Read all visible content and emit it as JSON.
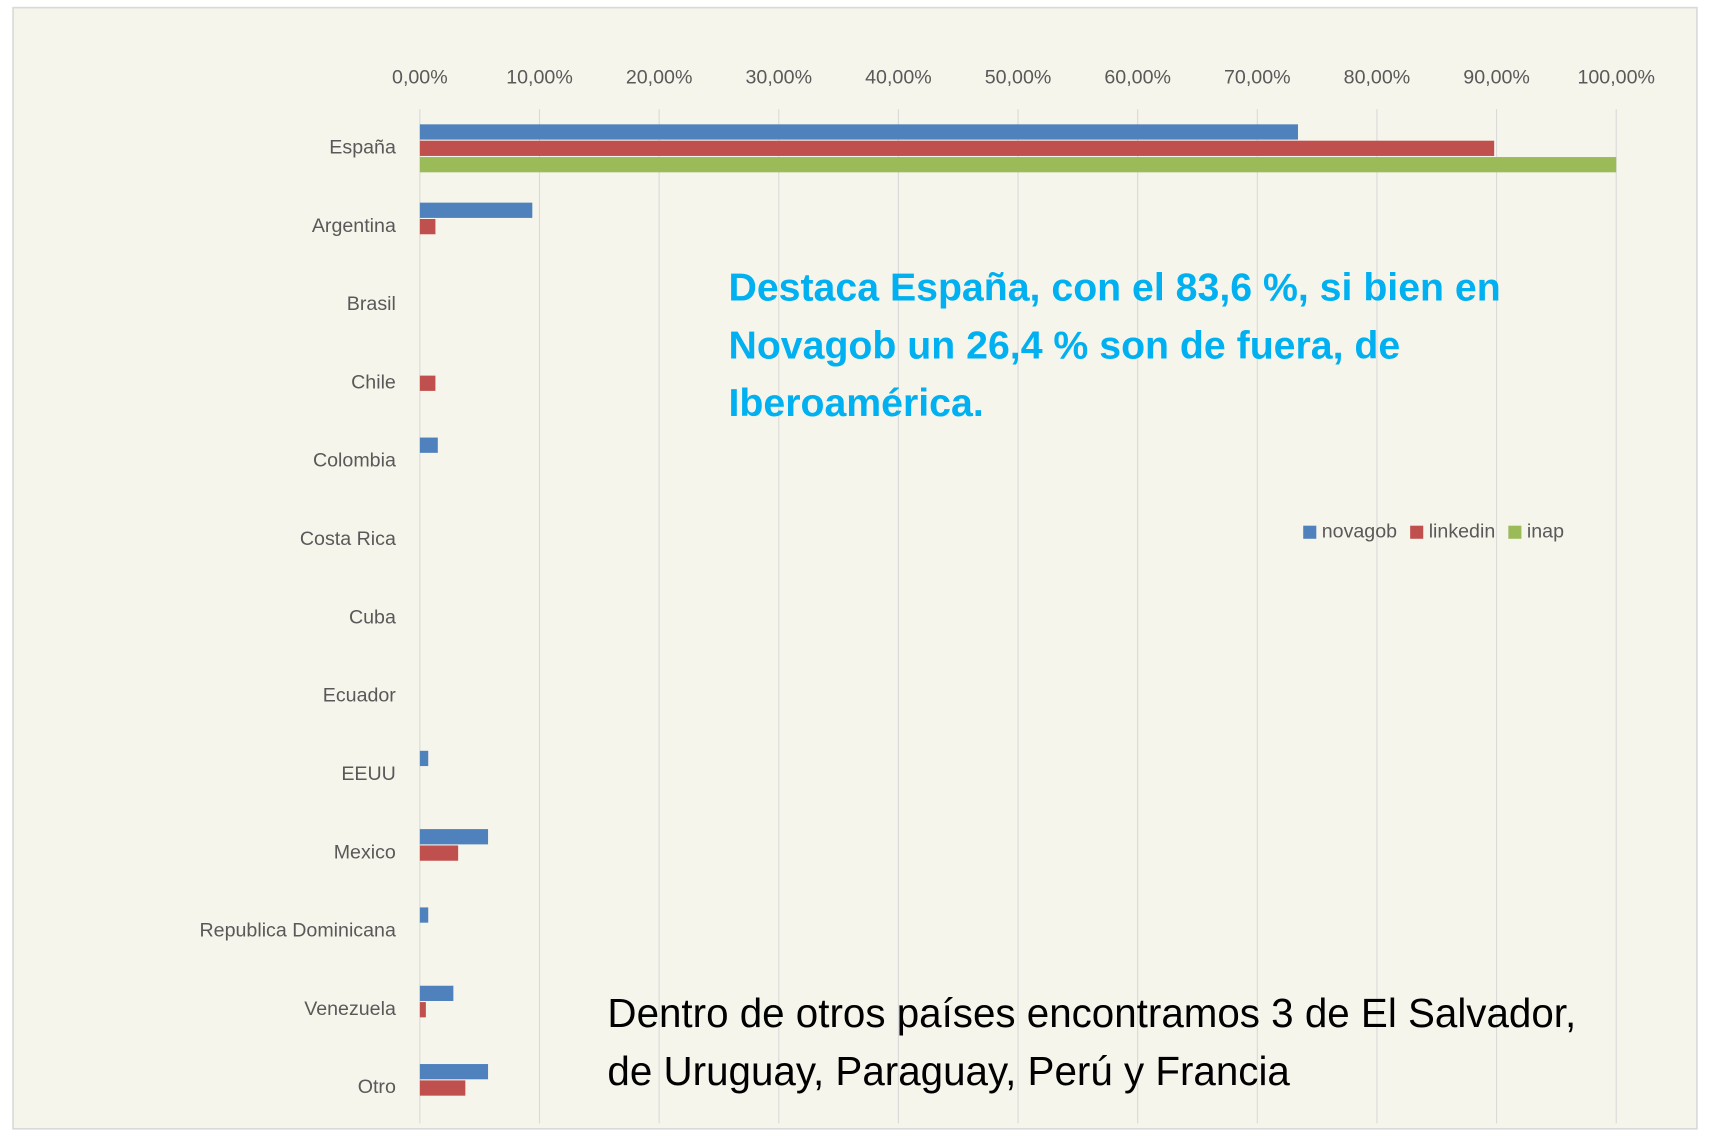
{
  "chart_data": {
    "type": "barh",
    "categories": [
      "España",
      "Argentina",
      "Brasil",
      "Chile",
      "Colombia",
      "Costa Rica",
      "Cuba",
      "Ecuador",
      "EEUU",
      "Mexico",
      "Republica Dominicana",
      "Venezuela",
      "Otro"
    ],
    "series": [
      {
        "name": "novagob",
        "color": "#4f81bd",
        "values": [
          73.4,
          9.4,
          0,
          0,
          1.5,
          0,
          0,
          0,
          0.7,
          5.7,
          0.7,
          2.8,
          5.7
        ]
      },
      {
        "name": "linkedin",
        "color": "#c0504d",
        "values": [
          89.8,
          1.3,
          0,
          1.3,
          0,
          0,
          0,
          0,
          0,
          3.2,
          0,
          0.5,
          3.8
        ]
      },
      {
        "name": "inap",
        "color": "#9bbb59",
        "values": [
          100,
          0,
          0,
          0,
          0,
          0,
          0,
          0,
          0,
          0,
          0,
          0,
          0
        ]
      }
    ],
    "xlim": [
      0,
      100
    ],
    "xticks": [
      {
        "value": 0,
        "label": "0,00%"
      },
      {
        "value": 10,
        "label": "10,00%"
      },
      {
        "value": 20,
        "label": "20,00%"
      },
      {
        "value": 30,
        "label": "30,00%"
      },
      {
        "value": 40,
        "label": "40,00%"
      },
      {
        "value": 50,
        "label": "50,00%"
      },
      {
        "value": 60,
        "label": "60,00%"
      },
      {
        "value": 70,
        "label": "70,00%"
      },
      {
        "value": 80,
        "label": "80,00%"
      },
      {
        "value": 90,
        "label": "90,00%"
      },
      {
        "value": 100,
        "label": "100,00%"
      }
    ],
    "grid": true,
    "legend": "right",
    "annotation": {
      "color": "#00b0f0",
      "lines": [
        "Destaca España, con el 83,6 %, si bien en",
        "Novagob un 26,4 % son de fuera, de",
        "Iberoamérica."
      ]
    },
    "note": {
      "lines": [
        "Dentro de otros países encontramos 3 de El Salvador,",
        "de Uruguay, Paraguay, Perú y Francia"
      ]
    }
  }
}
